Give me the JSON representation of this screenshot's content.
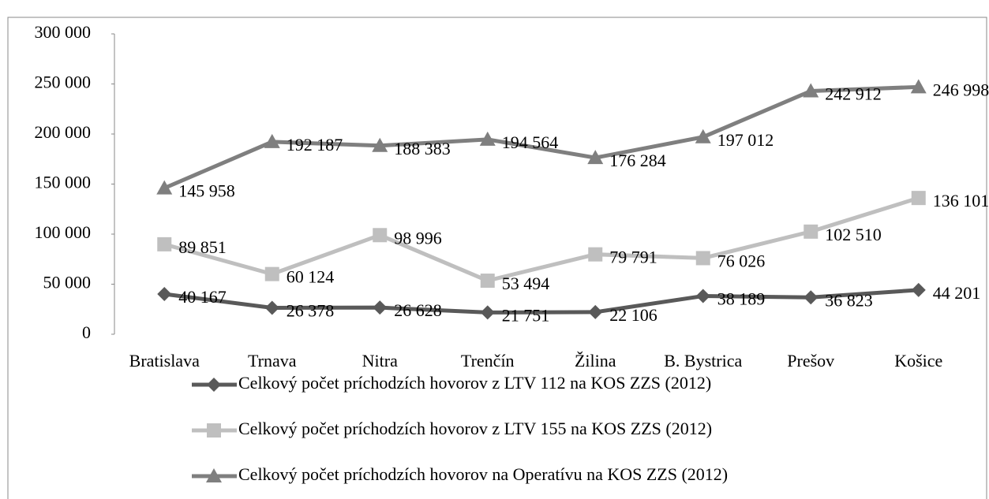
{
  "chart_data": {
    "type": "line",
    "categories": [
      "Bratislava",
      "Trnava",
      "Nitra",
      "Trenčín",
      "Žilina",
      "B. Bystrica",
      "Prešov",
      "Košice"
    ],
    "series": [
      {
        "name": "Celkový počet príchodzích hovorov z LTV 112 na KOS ZZS (2012)",
        "color": "#595959",
        "marker": "diamond",
        "values": [
          40167,
          26378,
          26628,
          21751,
          22106,
          38189,
          36823,
          44201
        ],
        "value_labels": [
          "40 167",
          "26 378",
          "26 628",
          "21 751",
          "22 106",
          "38 189",
          "36 823",
          "44 201"
        ]
      },
      {
        "name": "Celkový počet príchodzích hovorov z LTV 155 na KOS ZZS (2012)",
        "color": "#bfbfbf",
        "marker": "square",
        "values": [
          89851,
          60124,
          98996,
          53494,
          79791,
          76026,
          102510,
          136101
        ],
        "value_labels": [
          "89 851",
          "60 124",
          "98 996",
          "53 494",
          "79 791",
          "76 026",
          "102 510",
          "136 101"
        ]
      },
      {
        "name": "Celkový počet príchodzích hovorov na Operatívu na KOS ZZS (2012)",
        "color": "#7f7f7f",
        "marker": "triangle",
        "values": [
          145958,
          192187,
          188383,
          194564,
          176284,
          197012,
          242912,
          246998
        ],
        "value_labels": [
          "145 958",
          "192 187",
          "188 383",
          "194 564",
          "176 284",
          "197 012",
          "242 912",
          "246 998"
        ]
      }
    ],
    "ylim": [
      0,
      300000
    ],
    "yticks": [
      0,
      {
        "value": 50000,
        "label": "50 000"
      },
      {
        "value": 100000,
        "label": "100 000"
      },
      {
        "value": 150000,
        "label": "150 000"
      },
      {
        "value": 200000,
        "label": "200 000"
      },
      {
        "value": 250000,
        "label": "250 000"
      },
      {
        "value": 300000,
        "label": "300 000"
      }
    ],
    "grid": false,
    "legend": "bottom"
  }
}
